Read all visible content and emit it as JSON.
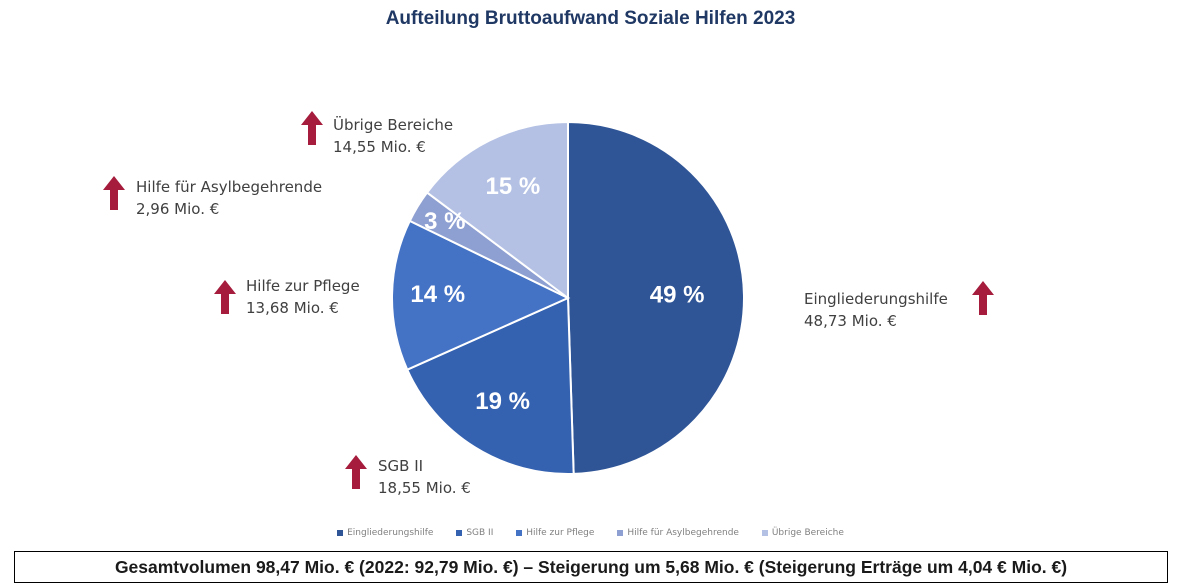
{
  "chart_data": {
    "type": "pie",
    "title": "Aufteilung Bruttoaufwand Soziale Hilfen 2023",
    "slices": [
      {
        "label": "Eingliederungshilfe",
        "percent_label": "49 %",
        "value": 48.73,
        "value_label": "48,73 Mio. €",
        "color": "#2f5597"
      },
      {
        "label": "SGB II",
        "percent_label": "19 %",
        "value": 18.55,
        "value_label": "18,55 Mio. €",
        "color": "#3461b0"
      },
      {
        "label": "Hilfe zur Pflege",
        "percent_label": "14 %",
        "value": 13.68,
        "value_label": "13,68 Mio. €",
        "color": "#4472c4"
      },
      {
        "label": "Hilfe für Asylbegehrende",
        "percent_label": "3 %",
        "value": 2.96,
        "value_label": "2,96 Mio. €",
        "color": "#8e9fd1"
      },
      {
        "label": "Übrige Bereiche",
        "percent_label": "15 %",
        "value": 14.55,
        "value_label": "14,55 Mio. €",
        "color": "#b4c1e4"
      }
    ],
    "legend_position": "bottom"
  },
  "colors": {
    "arrow": "#a51c3c",
    "title": "#1f3864"
  },
  "icons": {
    "trend": "arrow-up-icon"
  },
  "footer": {
    "text": "Gesamtvolumen 98,47 Mio. € (2022: 92,79 Mio. €) – Steigerung um 5,68 Mio. € (Steigerung Erträge um 4,04 € Mio. €)"
  }
}
